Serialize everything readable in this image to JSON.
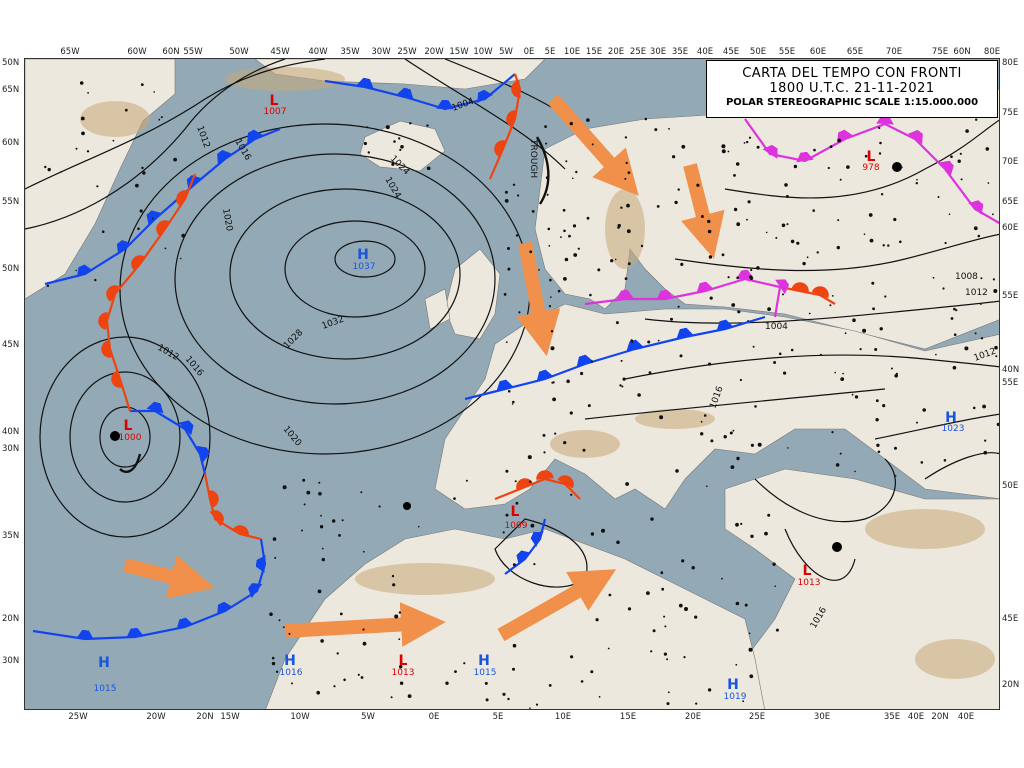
{
  "title": {
    "line1": "CARTA DEL TEMPO CON FRONTI",
    "line2": "1800 U.T.C. 21-11-2021",
    "line3": "POLAR STEREOGRAPHIC SCALE 1:15.000.000"
  },
  "axis": {
    "top": [
      "65W",
      "60W",
      "60N",
      "55W",
      "50W",
      "45W",
      "40W",
      "35W",
      "30W",
      "25W",
      "20W",
      "15W",
      "10W",
      "5W",
      "0E",
      "5E",
      "10E",
      "15E",
      "20E",
      "25E",
      "30E",
      "35E",
      "40E",
      "45E",
      "50E",
      "55E",
      "60E",
      "65E",
      "70E",
      "75E",
      "60N",
      "80E"
    ],
    "bottom": [
      "25W",
      "20W",
      "20N",
      "15W",
      "10W",
      "5W",
      "0E",
      "5E",
      "10E",
      "15E",
      "20E",
      "25E",
      "30E",
      "35E",
      "40E",
      "20N",
      "40E"
    ],
    "left": [
      "50N",
      "65N",
      "60N",
      "55N",
      "50N",
      "45N",
      "40N",
      "30N",
      "35N",
      "20N",
      "30N"
    ],
    "right": [
      "80E",
      "75E",
      "70E",
      "65E",
      "60E",
      "55E",
      "40N",
      "55E",
      "50E",
      "45E",
      "20N"
    ]
  },
  "centers": [
    {
      "type": "L",
      "value": "1007",
      "color": "#dd0000"
    },
    {
      "type": "H",
      "value": "1037",
      "color": "#1a55dd"
    },
    {
      "type": "L",
      "value": "1000",
      "color": "#dd0000"
    },
    {
      "type": "L",
      "value": "978",
      "color": "#dd0000"
    },
    {
      "type": "H",
      "value": "1023",
      "color": "#1a55dd"
    },
    {
      "type": "L",
      "value": "1009",
      "color": "#dd0000"
    },
    {
      "type": "L",
      "value": "1013",
      "color": "#dd0000"
    },
    {
      "type": "H",
      "value": "1015",
      "color": "#1a55dd"
    },
    {
      "type": "H",
      "value": "1016",
      "color": "#1a55dd"
    },
    {
      "type": "H",
      "value": "1015",
      "color": "#1a55dd"
    },
    {
      "type": "H",
      "value": "1019",
      "color": "#1a55dd"
    },
    {
      "type": "L",
      "value": "1013",
      "color": "#dd0000"
    }
  ],
  "isobar_labels": [
    "1004",
    "1012",
    "1016",
    "1020",
    "1024",
    "1028",
    "1032",
    "1012",
    "1016",
    "1020",
    "1004",
    "1008",
    "1012",
    "1016",
    "1016",
    "1012",
    "1024",
    "TROUGH"
  ],
  "colors": {
    "sea": "#93aab6",
    "land": "#ece8de",
    "relief": "#c8a878",
    "warm_front": "#ee4411",
    "cold_front": "#1144ee",
    "occlusion": "#dd33dd",
    "arrow": "#f0904a"
  }
}
